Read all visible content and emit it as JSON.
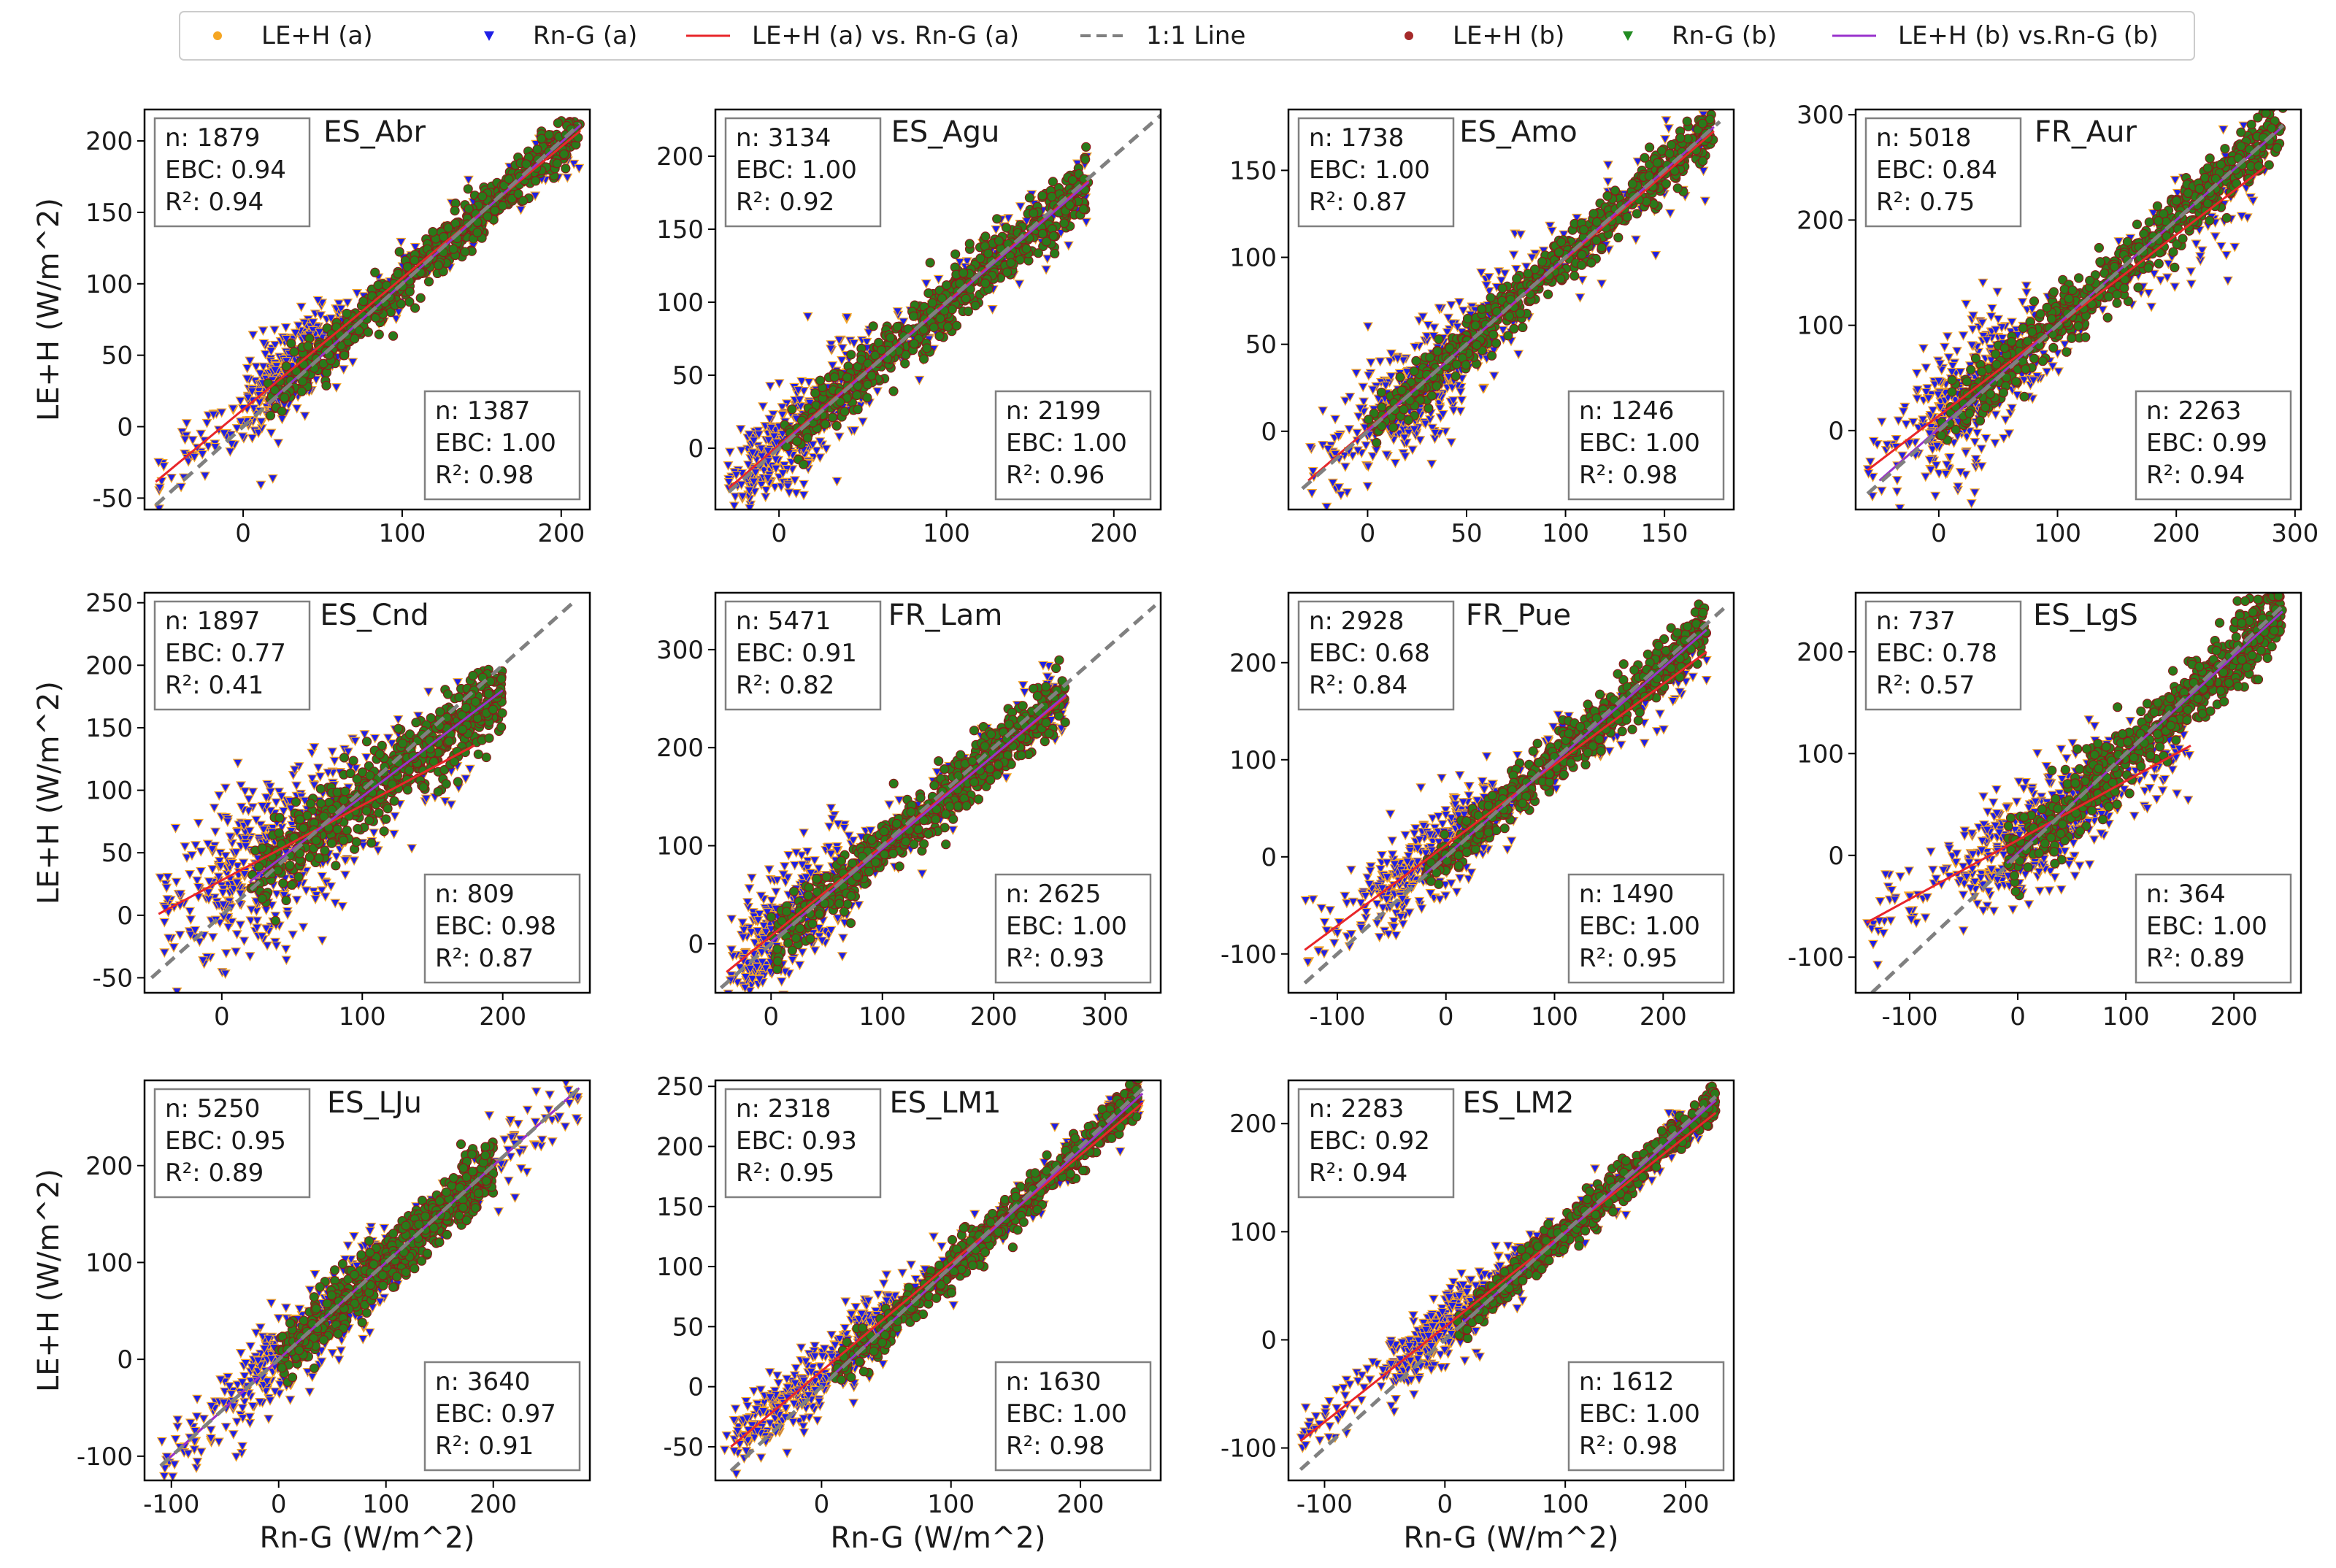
{
  "legend": {
    "entries": [
      {
        "label": "LE+H (a)",
        "kind": "dot",
        "color": "#f5a623"
      },
      {
        "label": "Rn-G (a)",
        "kind": "tri",
        "color": "#1f1fe6"
      },
      {
        "label": "LE+H (a) vs. Rn-G (a)",
        "kind": "line",
        "color": "#e8262a"
      },
      {
        "label": "1:1 Line",
        "kind": "dash",
        "color": "#808080"
      },
      {
        "label": "LE+H (b)",
        "kind": "dot",
        "color": "#a52a2a"
      },
      {
        "label": "Rn-G (b)",
        "kind": "tri",
        "color": "#228b22"
      },
      {
        "label": "LE+H (b) vs.Rn-G (b)",
        "kind": "line",
        "color": "#9932cc"
      }
    ]
  },
  "axis_labels": {
    "xlabel": "Rn-G (W/m^2)",
    "ylabel": "LE+H (W/m^2)"
  },
  "colors": {
    "a_points": "#1f1fe6",
    "a_edge": "#f5a623",
    "b_points": "#2a7a1a",
    "b_edge": "#8b1a1a",
    "fit_a": "#e8262a",
    "fit_b": "#9932cc",
    "one_to_one": "#808080"
  },
  "chart_data": [
    {
      "type": "scatter",
      "title": "ES_Abr",
      "xlim": [
        -62,
        218
      ],
      "ylim": [
        -58,
        222
      ],
      "xticks": [
        0,
        100,
        200
      ],
      "yticks": [
        -50,
        0,
        50,
        100,
        150,
        200
      ],
      "a": {
        "n": "1879",
        "ebc": "0.94",
        "r2": "0.94",
        "slope": 0.92,
        "intercept": 12,
        "noise": 12,
        "cluster": [
          10,
          50
        ],
        "spread": 1,
        "fit_range": [
          -55,
          212
        ]
      },
      "b": {
        "n": "1387",
        "ebc": "1.00",
        "r2": "0.98",
        "slope": 0.99,
        "intercept": 1,
        "noise": 8,
        "range": [
          15,
          212
        ],
        "fit_range": [
          15,
          212
        ]
      },
      "oneone": [
        -55,
        212
      ]
    },
    {
      "type": "scatter",
      "title": "ES_Agu",
      "xlim": [
        -38,
        228
      ],
      "ylim": [
        -42,
        232
      ],
      "xticks": [
        0,
        100,
        200
      ],
      "yticks": [
        0,
        50,
        100,
        150,
        200
      ],
      "a": {
        "n": "3134",
        "ebc": "1.00",
        "r2": "0.92",
        "slope": 0.98,
        "intercept": 2,
        "noise": 14,
        "cluster": [
          -20,
          40
        ],
        "spread": 1,
        "fit_range": [
          -30,
          185
        ]
      },
      "b": {
        "n": "2199",
        "ebc": "1.00",
        "r2": "0.96",
        "slope": 0.98,
        "intercept": 1,
        "noise": 10,
        "range": [
          0,
          185
        ],
        "fit_range": [
          0,
          185
        ]
      },
      "oneone": [
        -30,
        230
      ]
    },
    {
      "type": "scatter",
      "title": "ES_Amo",
      "xlim": [
        -40,
        185
      ],
      "ylim": [
        -45,
        185
      ],
      "xticks": [
        0,
        50,
        100,
        150
      ],
      "yticks": [
        0,
        50,
        100,
        150
      ],
      "a": {
        "n": "1738",
        "ebc": "1.00",
        "r2": "0.87",
        "slope": 0.98,
        "intercept": 1,
        "noise": 14,
        "cluster": [
          0,
          60
        ],
        "spread": 1,
        "fit_range": [
          -30,
          175
        ]
      },
      "b": {
        "n": "1246",
        "ebc": "1.00",
        "r2": "0.98",
        "slope": 1.0,
        "intercept": 0,
        "noise": 7,
        "range": [
          0,
          175
        ],
        "fit_range": [
          0,
          175
        ]
      },
      "oneone": [
        -33,
        178
      ]
    },
    {
      "type": "scatter",
      "title": "FR_Aur",
      "xlim": [
        -70,
        305
      ],
      "ylim": [
        -75,
        305
      ],
      "xticks": [
        0,
        100,
        200,
        300
      ],
      "yticks": [
        0,
        100,
        200,
        300
      ],
      "a": {
        "n": "5018",
        "ebc": "0.84",
        "r2": "0.75",
        "slope": 0.86,
        "intercept": 14,
        "noise": 25,
        "cluster": [
          -10,
          70
        ],
        "spread": 1,
        "fit_range": [
          -60,
          275
        ]
      },
      "b": {
        "n": "2263",
        "ebc": "0.99",
        "r2": "0.94",
        "slope": 0.99,
        "intercept": 2,
        "noise": 14,
        "range": [
          0,
          290
        ],
        "fit_range": [
          -50,
          290
        ]
      },
      "oneone": [
        -60,
        290
      ]
    },
    {
      "type": "scatter",
      "title": "ES_Cnd",
      "xlim": [
        -55,
        262
      ],
      "ylim": [
        -62,
        258
      ],
      "xticks": [
        0,
        100,
        200
      ],
      "yticks": [
        -50,
        0,
        50,
        100,
        150,
        200,
        250
      ],
      "a": {
        "n": "1897",
        "ebc": "0.77",
        "r2": "0.41",
        "slope": 0.6,
        "intercept": 28,
        "noise": 28,
        "cluster": [
          -10,
          80
        ],
        "spread": 1,
        "fit_range": [
          -45,
          180
        ]
      },
      "b": {
        "n": "809",
        "ebc": "0.98",
        "r2": "0.87",
        "slope": 0.85,
        "intercept": 10,
        "noise": 15,
        "range": [
          20,
          200
        ],
        "fit_range": [
          20,
          200
        ]
      },
      "oneone": [
        -50,
        250
      ]
    },
    {
      "type": "scatter",
      "title": "FR_Lam",
      "xlim": [
        -50,
        350
      ],
      "ylim": [
        -50,
        358
      ],
      "xticks": [
        0,
        100,
        200,
        300
      ],
      "yticks": [
        0,
        100,
        200,
        300
      ],
      "a": {
        "n": "5471",
        "ebc": "0.91",
        "r2": "0.82",
        "slope": 0.92,
        "intercept": 8,
        "noise": 22,
        "cluster": [
          -20,
          60
        ],
        "spread": 1,
        "fit_range": [
          -40,
          265
        ]
      },
      "b": {
        "n": "2625",
        "ebc": "1.00",
        "r2": "0.93",
        "slope": 0.95,
        "intercept": 2,
        "noise": 15,
        "range": [
          0,
          265
        ],
        "fit_range": [
          0,
          265
        ]
      },
      "oneone": [
        -45,
        345
      ]
    },
    {
      "type": "scatter",
      "title": "FR_Pue",
      "xlim": [
        -145,
        265
      ],
      "ylim": [
        -140,
        272
      ],
      "xticks": [
        -100,
        0,
        100,
        200
      ],
      "yticks": [
        -100,
        0,
        100,
        200
      ],
      "a": {
        "n": "2928",
        "ebc": "0.68",
        "r2": "0.84",
        "slope": 0.83,
        "intercept": 12,
        "noise": 18,
        "cluster": [
          -60,
          40
        ],
        "spread": 1,
        "fit_range": [
          -130,
          240
        ]
      },
      "b": {
        "n": "1490",
        "ebc": "1.00",
        "r2": "0.95",
        "slope": 0.97,
        "intercept": 1,
        "noise": 12,
        "range": [
          -20,
          240
        ],
        "fit_range": [
          -20,
          240
        ]
      },
      "oneone": [
        -130,
        260
      ]
    },
    {
      "type": "scatter",
      "title": "ES_LgS",
      "xlim": [
        -150,
        262
      ],
      "ylim": [
        -135,
        258
      ],
      "xticks": [
        -100,
        0,
        100,
        200
      ],
      "yticks": [
        -100,
        0,
        100,
        200
      ],
      "a": {
        "n": "737",
        "ebc": "0.78",
        "r2": "0.57",
        "slope": 0.58,
        "intercept": 15,
        "noise": 22,
        "cluster": [
          -40,
          80
        ],
        "spread": 1,
        "fit_range": [
          -140,
          160
        ]
      },
      "b": {
        "n": "364",
        "ebc": "1.00",
        "r2": "0.89",
        "slope": 0.97,
        "intercept": 2,
        "noise": 18,
        "range": [
          -10,
          245
        ],
        "fit_range": [
          -10,
          245
        ]
      },
      "oneone": [
        -135,
        245
      ]
    },
    {
      "type": "scatter",
      "title": "ES_LJu",
      "xlim": [
        -125,
        290
      ],
      "ylim": [
        -125,
        288
      ],
      "xticks": [
        -100,
        0,
        100,
        200
      ],
      "yticks": [
        -100,
        0,
        100,
        200
      ],
      "a": {
        "n": "5250",
        "ebc": "0.95",
        "r2": "0.89",
        "slope": 1.0,
        "intercept": 0,
        "noise": 18,
        "cluster": [
          -40,
          100
        ],
        "spread": 1,
        "fit_range": [
          -110,
          280
        ]
      },
      "b": {
        "n": "3640",
        "ebc": "0.97",
        "r2": "0.91",
        "slope": 1.0,
        "intercept": 0,
        "noise": 16,
        "range": [
          0,
          200
        ],
        "fit_range": [
          -110,
          280
        ]
      },
      "oneone": [
        -110,
        280
      ]
    },
    {
      "type": "scatter",
      "title": "ES_LM1",
      "xlim": [
        -82,
        262
      ],
      "ylim": [
        -78,
        255
      ],
      "xticks": [
        0,
        100,
        200
      ],
      "yticks": [
        -50,
        0,
        50,
        100,
        150,
        200,
        250
      ],
      "a": {
        "n": "2318",
        "ebc": "0.93",
        "r2": "0.95",
        "slope": 0.9,
        "intercept": 13,
        "noise": 12,
        "cluster": [
          -60,
          60
        ],
        "spread": 1,
        "fit_range": [
          -70,
          248
        ]
      },
      "b": {
        "n": "1630",
        "ebc": "1.00",
        "r2": "0.98",
        "slope": 0.98,
        "intercept": 1,
        "noise": 8,
        "range": [
          10,
          245
        ],
        "fit_range": [
          10,
          248
        ]
      },
      "oneone": [
        -70,
        248
      ]
    },
    {
      "type": "scatter",
      "title": "ES_LM2",
      "xlim": [
        -130,
        240
      ],
      "ylim": [
        -130,
        240
      ],
      "xticks": [
        -100,
        0,
        100,
        200
      ],
      "yticks": [
        -100,
        0,
        100,
        200
      ],
      "a": {
        "n": "2283",
        "ebc": "0.92",
        "r2": "0.94",
        "slope": 0.88,
        "intercept": 12,
        "noise": 12,
        "cluster": [
          -40,
          60
        ],
        "spread": 1,
        "fit_range": [
          -120,
          225
        ]
      },
      "b": {
        "n": "1612",
        "ebc": "1.00",
        "r2": "0.98",
        "slope": 0.98,
        "intercept": 1,
        "noise": 8,
        "range": [
          10,
          225
        ],
        "fit_range": [
          10,
          225
        ]
      },
      "oneone": [
        -120,
        225
      ]
    }
  ]
}
